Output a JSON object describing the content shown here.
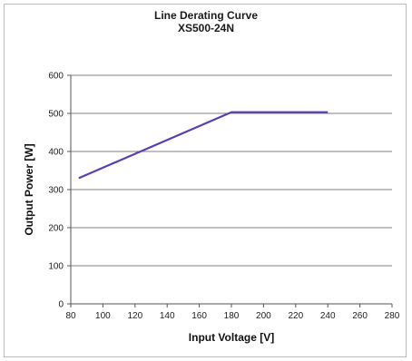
{
  "chart_data": {
    "type": "line",
    "title": "Line Derating Curve",
    "subtitle": "XS500-24N",
    "xlabel": "Input Voltage [V]",
    "ylabel": "Output Power [W]",
    "xlim": [
      80,
      280
    ],
    "ylim": [
      0,
      600
    ],
    "x_ticks": [
      "80",
      "100",
      "120",
      "140",
      "160",
      "180",
      "200",
      "220",
      "240",
      "260",
      "280"
    ],
    "y_ticks": [
      "0",
      "100",
      "200",
      "300",
      "400",
      "500",
      "600"
    ],
    "grid": "horizontal",
    "legend": "none",
    "series": [
      {
        "color": "#5b3fb0",
        "points": [
          {
            "x": 85,
            "y": 330
          },
          {
            "x": 180,
            "y": 503
          },
          {
            "x": 240,
            "y": 503
          }
        ]
      }
    ]
  }
}
